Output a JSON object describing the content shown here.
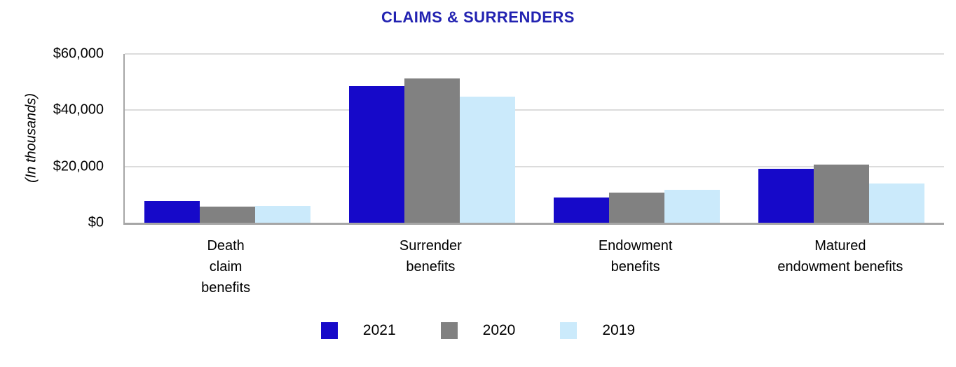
{
  "page": {
    "background_color": "#FFFFFF"
  },
  "chart_data": {
    "type": "bar",
    "title": "CLAIMS & SURRENDERS",
    "title_color": "#2222B1",
    "ylabel": "(In thousands)",
    "xlabel": "",
    "ylim": [
      0,
      60000
    ],
    "grid": true,
    "gridline_color": "#DCDCDC",
    "axis_color": "#A6A6A6",
    "legend_position": "bottom",
    "yticks": [
      {
        "label": "$60,000",
        "value": 60000
      },
      {
        "label": "$40,000",
        "value": 40000
      },
      {
        "label": "$20,000",
        "value": 20000
      },
      {
        "label": "$0",
        "value": 0
      }
    ],
    "categories": [
      {
        "name": "Death claim benefits",
        "label_lines": [
          "Death",
          "claim",
          "benefits"
        ]
      },
      {
        "name": "Surrender benefits",
        "label_lines": [
          "Surrender",
          "benefits"
        ]
      },
      {
        "name": "Endowment benefits",
        "label_lines": [
          "Endowment",
          "benefits"
        ]
      },
      {
        "name": "Matured endowment benefits",
        "label_lines": [
          "Matured",
          "endowment benefits"
        ]
      }
    ],
    "series": [
      {
        "name": "2021",
        "color": "#1609C9",
        "values": [
          7600,
          48500,
          9000,
          19200
        ]
      },
      {
        "name": "2020",
        "color": "#818181",
        "values": [
          5700,
          51400,
          10700,
          20700
        ]
      },
      {
        "name": "2019",
        "color": "#CBEAFB",
        "values": [
          6100,
          44800,
          11700,
          13900
        ]
      }
    ]
  }
}
